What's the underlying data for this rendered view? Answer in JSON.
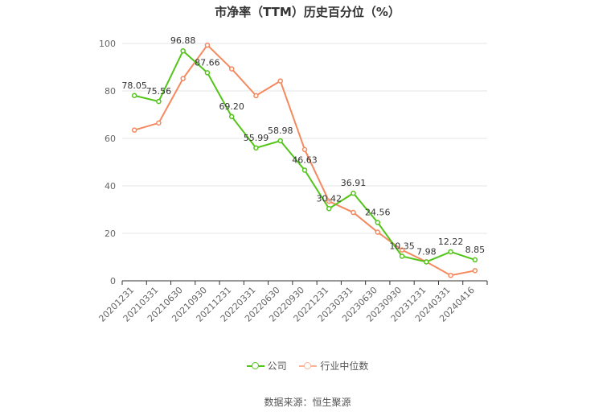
{
  "chart_data": {
    "type": "line",
    "title": "市净率（TTM）历史百分位（%）",
    "categories": [
      "20201231",
      "20210331",
      "20210630",
      "20210930",
      "20211231",
      "20220331",
      "20220630",
      "20220930",
      "20221231",
      "20230331",
      "20230630",
      "20230930",
      "20231231",
      "20240331",
      "20240416"
    ],
    "series": [
      {
        "name": "公司",
        "color": "#52c41a",
        "values": [
          78.05,
          75.56,
          96.88,
          87.66,
          69.2,
          55.99,
          58.98,
          46.63,
          30.42,
          36.91,
          24.56,
          10.35,
          7.98,
          12.22,
          8.85
        ],
        "labels": [
          "78.05",
          "75.56",
          "96.88",
          "87.66",
          "69.20",
          "55.99",
          "58.98",
          "46.63",
          "30.42",
          "36.91",
          "24.56",
          "10.35",
          "7.98",
          "12.22",
          "8.85"
        ]
      },
      {
        "name": "行业中位数",
        "color": "#f4895f",
        "values": [
          63.5,
          66.5,
          85.2,
          99.3,
          89.3,
          78.0,
          84.2,
          55.3,
          33.5,
          28.8,
          20.5,
          13.0,
          8.0,
          2.3,
          4.3
        ]
      }
    ],
    "ylim": [
      0,
      100
    ],
    "yticks": [
      0,
      20,
      40,
      60,
      80,
      100
    ],
    "grid": true,
    "legend": "bottom"
  },
  "source": "数据来源：恒生聚源"
}
